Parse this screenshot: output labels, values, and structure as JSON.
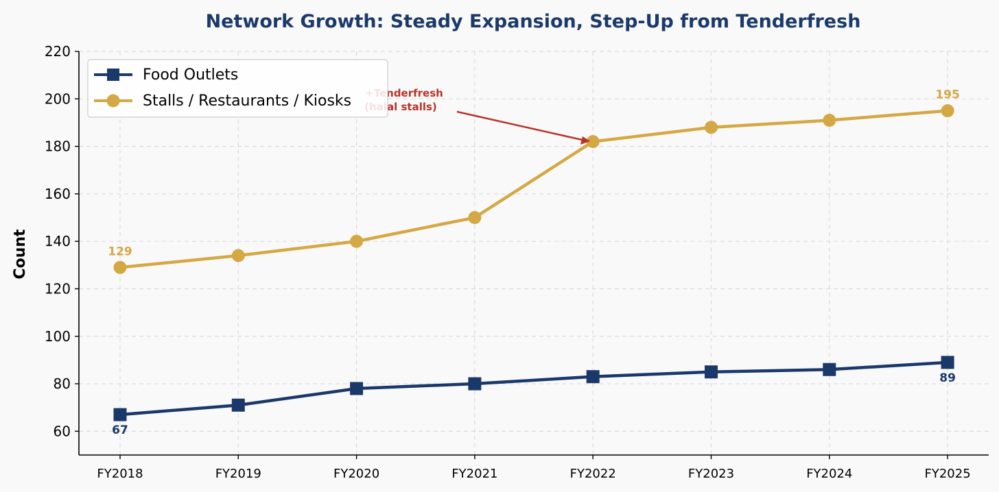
{
  "colors": {
    "title": "#1b3a6b",
    "food_outlets": "#1b386b",
    "stalls": "#d4a843",
    "annotation": "#b83228",
    "grid": "#dcdcdc",
    "background": "#f9f9f9"
  },
  "chart_data": {
    "type": "line",
    "title": "Network Growth: Steady Expansion, Step-Up from Tenderfresh",
    "xlabel": "",
    "ylabel": "Count",
    "ylim": [
      50,
      220
    ],
    "yticks": [
      60,
      80,
      100,
      120,
      140,
      160,
      180,
      200,
      220
    ],
    "grid": true,
    "legend_position": "upper-left",
    "categories": [
      "FY2018",
      "FY2019",
      "FY2020",
      "FY2021",
      "FY2022",
      "FY2023",
      "FY2024",
      "FY2025"
    ],
    "series": [
      {
        "name": "Food Outlets",
        "marker": "square",
        "color": "#1b386b",
        "values": [
          67,
          71,
          78,
          80,
          83,
          85,
          86,
          89
        ],
        "endpoint_labels": [
          "67",
          "89"
        ]
      },
      {
        "name": "Stalls / Restaurants / Kiosks",
        "marker": "circle",
        "color": "#d4a843",
        "values": [
          129,
          134,
          140,
          150,
          182,
          188,
          191,
          195
        ],
        "endpoint_labels": [
          "129",
          "195"
        ]
      }
    ],
    "annotation": {
      "lines": [
        "+Tenderfresh",
        "(halal stalls)"
      ],
      "target_category": "FY2022",
      "target_value": 182
    }
  }
}
